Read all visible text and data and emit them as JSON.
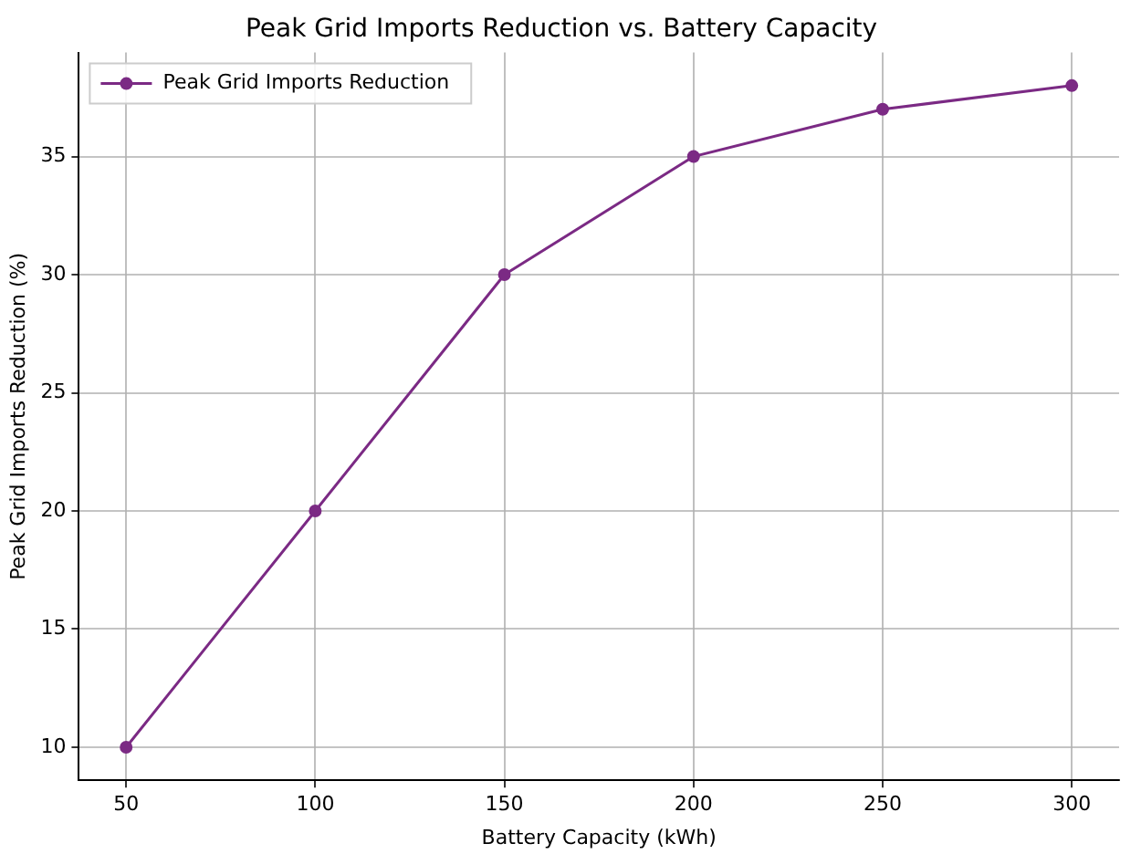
{
  "chart_data": {
    "type": "line",
    "title": "Peak Grid Imports Reduction vs. Battery Capacity",
    "xlabel": "Battery Capacity (kWh)",
    "ylabel": "Peak Grid Imports Reduction (%)",
    "x": [
      50,
      100,
      150,
      200,
      250,
      300
    ],
    "series": [
      {
        "name": "Peak Grid Imports Reduction",
        "color": "#7b2a84",
        "values": [
          10,
          20,
          30,
          35,
          37,
          38
        ]
      }
    ],
    "xlim": [
      37.5,
      312.5
    ],
    "xticks": [
      50,
      100,
      150,
      200,
      250,
      300
    ],
    "ylim": [
      8.6,
      39.4
    ],
    "yticks": [
      10,
      15,
      20,
      25,
      30,
      35
    ],
    "grid": true,
    "legend": "top left",
    "marker": "circle",
    "line_style": "solid"
  }
}
